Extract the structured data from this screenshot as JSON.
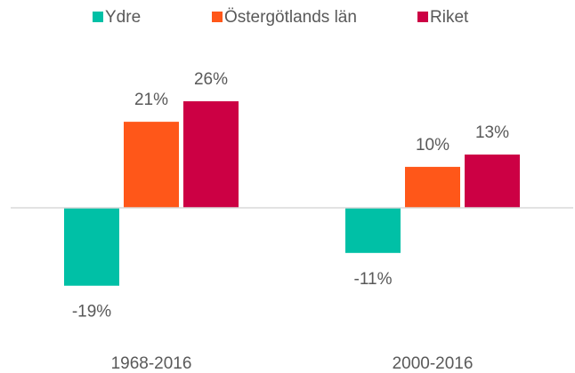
{
  "chart_data": {
    "type": "bar",
    "categories": [
      "1968-2016",
      "2000-2016"
    ],
    "series": [
      {
        "name": "Ydre",
        "color": "#00c0a6",
        "values": [
          -19,
          -11
        ],
        "value_labels": [
          "-19%",
          "-11%"
        ]
      },
      {
        "name": "Östergötlands län",
        "color": "#ff5719",
        "values": [
          21,
          10
        ],
        "value_labels": [
          "21%",
          "10%"
        ]
      },
      {
        "name": "Riket",
        "color": "#cc0044",
        "values": [
          26,
          13
        ],
        "value_labels": [
          "26%",
          "13%"
        ]
      }
    ],
    "ylim": [
      -30,
      35
    ],
    "legend": "top"
  }
}
